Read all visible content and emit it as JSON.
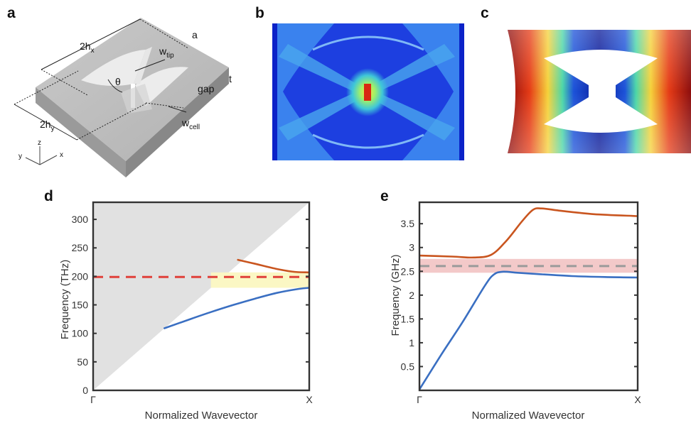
{
  "panels": {
    "a": {
      "letter": "a",
      "labels": {
        "two_hx": "2h",
        "two_hx_sub": "x",
        "two_hy": "2h",
        "two_hy_sub": "y",
        "a": "a",
        "t": "t",
        "w_tip": "w",
        "w_tip_sub": "tip",
        "theta": "θ",
        "gap": "gap",
        "w_cell": "w",
        "w_cell_sub": "cell",
        "axis_x": "x",
        "axis_y": "y",
        "axis_z": "z"
      }
    },
    "b": {
      "letter": "b"
    },
    "c": {
      "letter": "c"
    },
    "d": {
      "letter": "d"
    },
    "e": {
      "letter": "e"
    }
  },
  "chart_data": [
    {
      "panel": "d",
      "type": "line",
      "xlabel": "Normalized Wavevector",
      "ylabel": "Frequency (THz)",
      "xlim": [
        0,
        1
      ],
      "ylim": [
        0,
        330
      ],
      "xticks": [
        {
          "pos": 0,
          "label": "Γ"
        },
        {
          "pos": 1,
          "label": "X"
        }
      ],
      "yticks": [
        0,
        50,
        100,
        150,
        200,
        250,
        300
      ],
      "light_cone": {
        "color": "#e1e1e1",
        "edge": [
          [
            0,
            0
          ],
          [
            1,
            330
          ]
        ]
      },
      "band": {
        "y0": 180,
        "y1": 207,
        "x0": 0.545,
        "x1": 1,
        "color": "#fbf7c4"
      },
      "hline": {
        "y": 199,
        "color": "#e0403a",
        "style": "dashed"
      },
      "series": [
        {
          "color": "#3a6fc2",
          "points": [
            [
              0.33,
              109
            ],
            [
              0.45,
              125
            ],
            [
              0.55,
              138
            ],
            [
              0.65,
              150
            ],
            [
              0.75,
              161
            ],
            [
              0.85,
              171
            ],
            [
              0.95,
              178
            ],
            [
              1.0,
              180
            ]
          ]
        },
        {
          "color": "#c9551f",
          "points": [
            [
              0.67,
              229
            ],
            [
              0.75,
              222
            ],
            [
              0.85,
              213
            ],
            [
              0.93,
              208
            ],
            [
              1.0,
              207
            ]
          ]
        }
      ]
    },
    {
      "panel": "e",
      "type": "line",
      "xlabel": "Normalized Wavevector",
      "ylabel": "Frequency (GHz)",
      "xlim": [
        0,
        1
      ],
      "ylim": [
        0,
        3.95
      ],
      "xticks": [
        {
          "pos": 0,
          "label": "Γ"
        },
        {
          "pos": 1,
          "label": "X"
        }
      ],
      "yticks": [
        {
          "value": 0.5,
          "label": "0.5"
        },
        {
          "value": 1,
          "label": "1"
        },
        {
          "value": 1.5,
          "label": "1.5"
        },
        {
          "value": 2,
          "label": "2"
        },
        {
          "value": 2.5,
          "label": "2.5"
        },
        {
          "value": 3,
          "label": "3"
        },
        {
          "value": 3.5,
          "label": "3.5"
        }
      ],
      "band": {
        "y0": 2.47,
        "y1": 2.76,
        "x0": 0,
        "x1": 1,
        "color": "#f3c9c9"
      },
      "hline": {
        "y": 2.61,
        "color": "#9a9a9a",
        "style": "dashed"
      },
      "series": [
        {
          "color": "#3a6fc2",
          "points": [
            [
              0.0,
              0.02
            ],
            [
              0.1,
              0.75
            ],
            [
              0.2,
              1.45
            ],
            [
              0.3,
              2.2
            ],
            [
              0.34,
              2.43
            ],
            [
              0.38,
              2.49
            ],
            [
              0.45,
              2.47
            ],
            [
              0.55,
              2.44
            ],
            [
              0.7,
              2.4
            ],
            [
              0.85,
              2.38
            ],
            [
              1.0,
              2.37
            ]
          ]
        },
        {
          "color": "#c9551f",
          "points": [
            [
              0.0,
              2.83
            ],
            [
              0.15,
              2.81
            ],
            [
              0.25,
              2.79
            ],
            [
              0.33,
              2.85
            ],
            [
              0.4,
              3.15
            ],
            [
              0.47,
              3.55
            ],
            [
              0.52,
              3.79
            ],
            [
              0.56,
              3.82
            ],
            [
              0.65,
              3.77
            ],
            [
              0.8,
              3.7
            ],
            [
              1.0,
              3.66
            ]
          ]
        }
      ]
    }
  ]
}
